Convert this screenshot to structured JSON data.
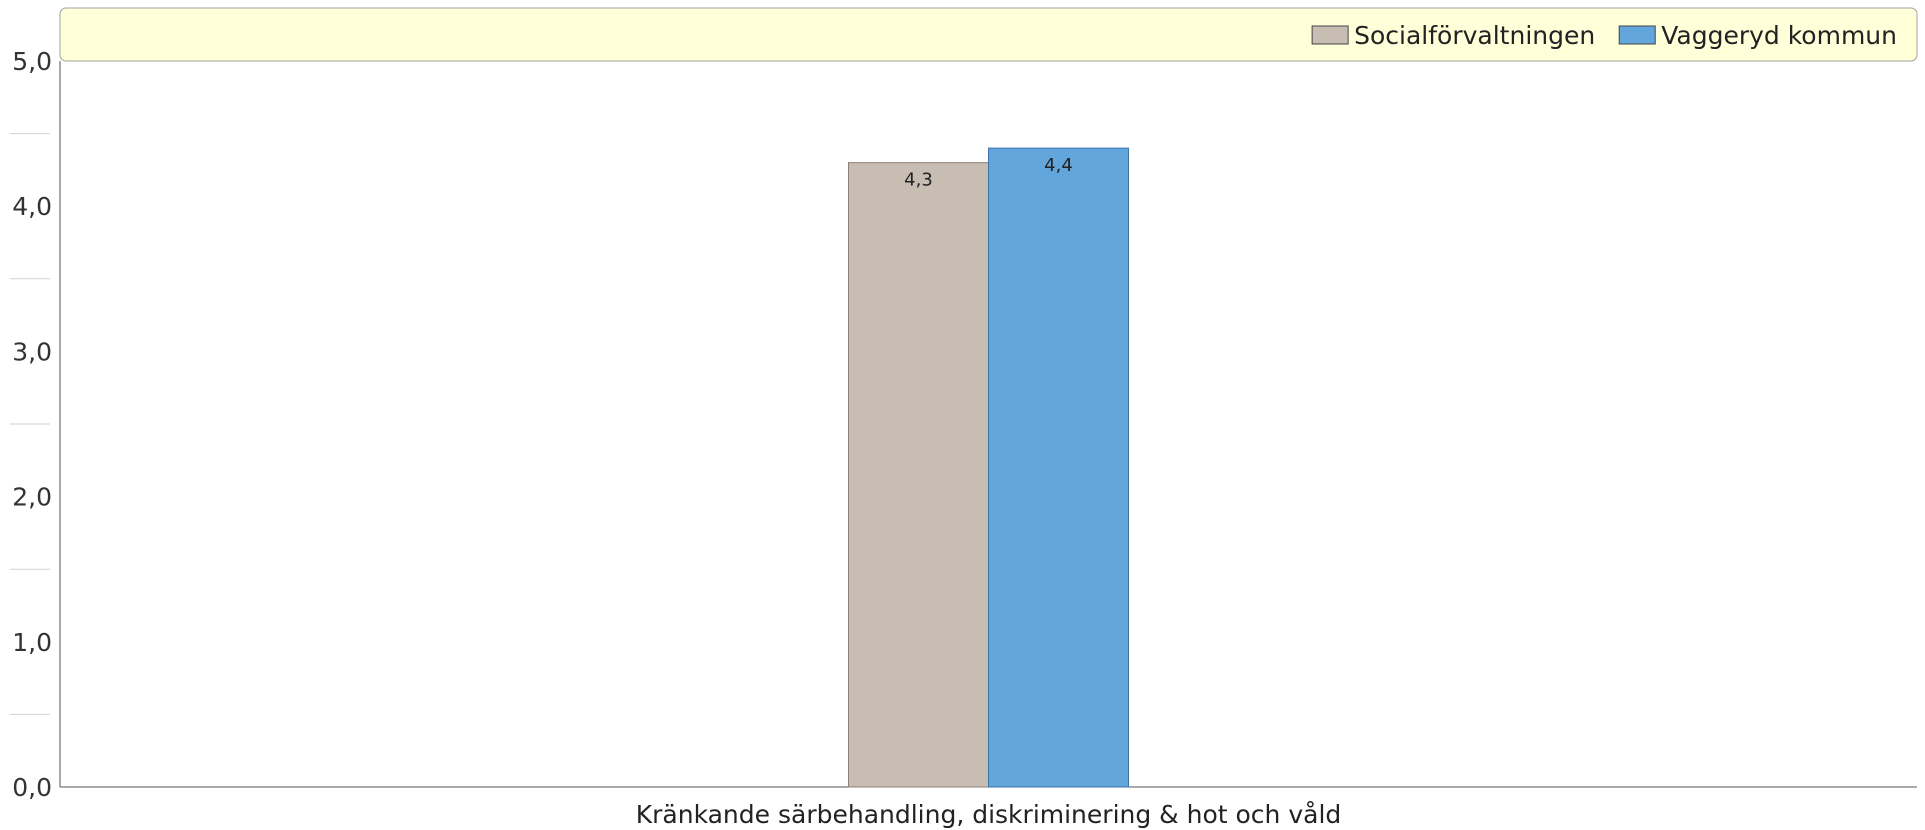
{
  "chart_data": {
    "type": "bar",
    "categories": [
      "Kränkande särbehandling, diskriminering & hot och våld"
    ],
    "series": [
      {
        "name": "Socialförvaltningen",
        "values": [
          4.3
        ],
        "labels": [
          "4,3"
        ],
        "color": "#c7bdb3"
      },
      {
        "name": "Vaggeryd kommun",
        "values": [
          4.4
        ],
        "labels": [
          "4,4"
        ],
        "color": "#62a6db"
      }
    ],
    "ylim": [
      0,
      5
    ],
    "yticks": [
      0,
      1,
      2,
      3,
      4,
      5
    ],
    "ytick_labels": [
      "0,0",
      "1,0",
      "2,0",
      "3,0",
      "4,0",
      "5,0"
    ],
    "legend_position": "top-right",
    "legend_background": "#ffffd9",
    "grid": false
  }
}
